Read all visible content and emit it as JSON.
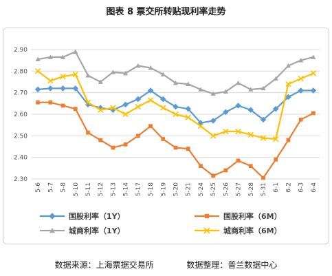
{
  "title": "图表 8  票交所转贴现利率走势",
  "source": {
    "left": "数据来源：上海票据交易所",
    "right": "数据整理：普兰数据中心"
  },
  "chart_data": {
    "type": "line",
    "categories": [
      "5-6",
      "5-7",
      "5-8",
      "5-10",
      "5-11",
      "5-12",
      "5-13",
      "5-14",
      "5-17",
      "5-18",
      "5-19",
      "5-20",
      "5-21",
      "5-24",
      "5-25",
      "5-26",
      "5-27",
      "5-28",
      "5-31",
      "6-1",
      "6-2",
      "6-3",
      "6-4"
    ],
    "ylim": [
      2.3,
      2.9
    ],
    "yticks": [
      "2.30",
      "2.40",
      "2.50",
      "2.60",
      "2.70",
      "2.80",
      "2.90"
    ],
    "grid": true,
    "legend_position": "bottom",
    "series": [
      {
        "name": "国股利率（1Y）",
        "color": "#5b9bd5",
        "marker": "diamond",
        "values": [
          2.715,
          2.72,
          2.72,
          2.72,
          2.645,
          2.63,
          2.62,
          2.645,
          2.67,
          2.71,
          2.67,
          2.635,
          2.625,
          2.56,
          2.57,
          2.61,
          2.64,
          2.62,
          2.575,
          2.625,
          2.68,
          2.71,
          2.71
        ]
      },
      {
        "name": "国股利率（6M）",
        "color": "#ed7d31",
        "marker": "square",
        "values": [
          2.655,
          2.655,
          2.64,
          2.625,
          2.515,
          2.48,
          2.445,
          2.46,
          2.5,
          2.545,
          2.485,
          2.445,
          2.44,
          2.36,
          2.315,
          2.34,
          2.385,
          2.36,
          2.305,
          2.39,
          2.48,
          2.575,
          2.605
        ]
      },
      {
        "name": "城商利率（1Y）",
        "color": "#a5a5a5",
        "marker": "triangle",
        "values": [
          2.855,
          2.865,
          2.865,
          2.89,
          2.78,
          2.75,
          2.795,
          2.79,
          2.825,
          2.815,
          2.785,
          2.745,
          2.74,
          2.715,
          2.695,
          2.705,
          2.745,
          2.715,
          2.72,
          2.765,
          2.825,
          2.85,
          2.865
        ]
      },
      {
        "name": "城商利率（6M）",
        "color": "#ffc000",
        "marker": "x",
        "values": [
          2.8,
          2.755,
          2.775,
          2.785,
          2.655,
          2.62,
          2.63,
          2.6,
          2.635,
          2.665,
          2.63,
          2.6,
          2.585,
          2.545,
          2.5,
          2.52,
          2.52,
          2.505,
          2.49,
          2.485,
          2.74,
          2.765,
          2.79
        ]
      }
    ]
  }
}
